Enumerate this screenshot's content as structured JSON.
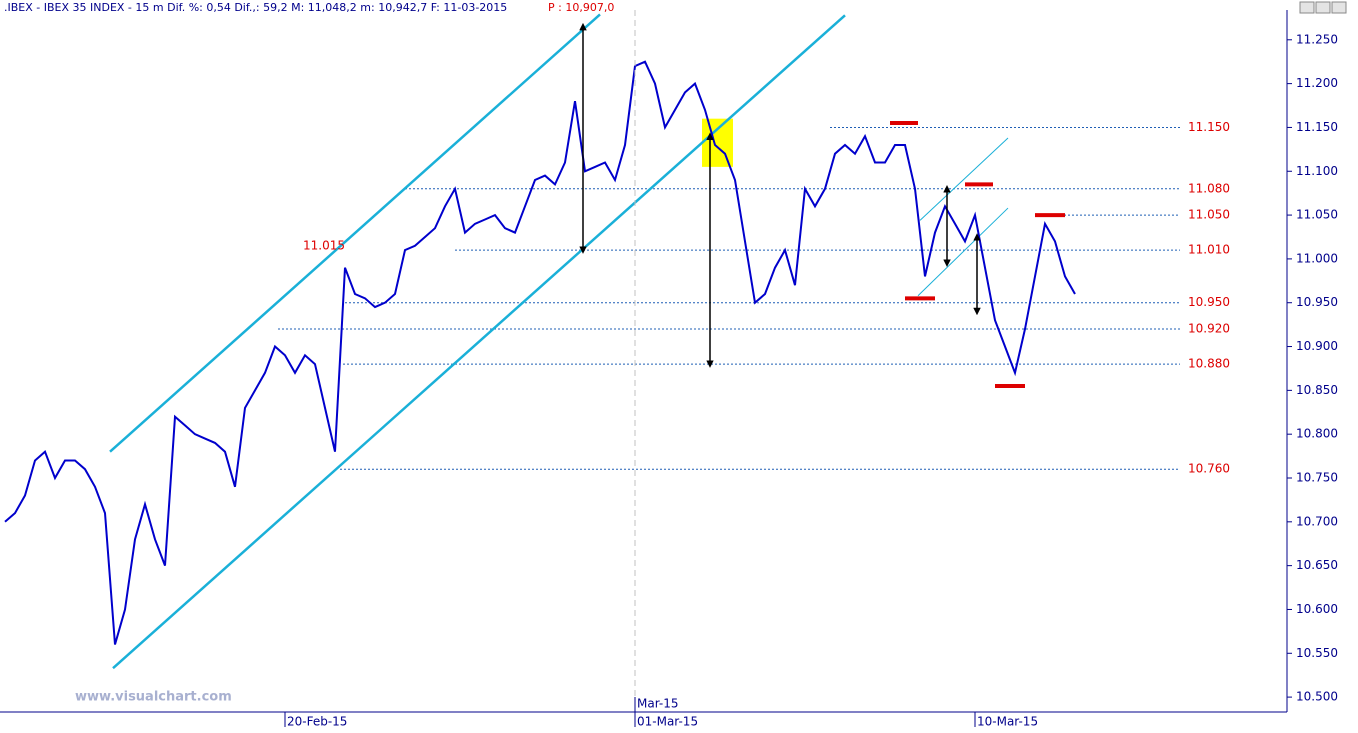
{
  "header": {
    "text": ".IBEX - IBEX 35 INDEX -  15 m Dif. %: 0,54 Dif.,: 59,2 M: 11,048,2 m: 10,942,7 F: 11-03-2015",
    "price": "P : 10,907,0"
  },
  "watermark": "www.visualchart.com",
  "chart_data": {
    "type": "line",
    "series": [
      {
        "name": ".IBEX",
        "color": "#0000cc",
        "values": [
          10700,
          10710,
          10730,
          10770,
          10780,
          10750,
          10770,
          10770,
          10760,
          10740,
          10710,
          10560,
          10600,
          10680,
          10720,
          10680,
          10650,
          10820,
          10810,
          10800,
          10795,
          10790,
          10780,
          10740,
          10830,
          10850,
          10870,
          10900,
          10890,
          10870,
          10890,
          10880,
          10830,
          10780,
          10990,
          10960,
          10955,
          10945,
          10950,
          10960,
          11010,
          11015,
          11025,
          11035,
          11060,
          11080,
          11030,
          11040,
          11045,
          11050,
          11035,
          11030,
          11060,
          11090,
          11095,
          11085,
          11110,
          11180,
          11100,
          11105,
          11110,
          11090,
          11130,
          11220,
          11225,
          11200,
          11150,
          11170,
          11190,
          11200,
          11170,
          11130,
          11120,
          11090,
          11020,
          10950,
          10960,
          10990,
          11010,
          10970,
          11080,
          11060,
          11080,
          11120,
          11130,
          11120,
          11140,
          11110,
          11110,
          11130,
          11130,
          11080,
          10980,
          11030,
          11060,
          11040,
          11020,
          11050,
          10990,
          10930,
          10900,
          10870,
          10920,
          10980,
          11040,
          11020,
          10980,
          10960
        ]
      }
    ],
    "xlim": [
      -0.5,
      128
    ],
    "ylim": [
      10483,
      11284
    ],
    "yticks": [
      {
        "value": 11250,
        "label": "11.250"
      },
      {
        "value": 11200,
        "label": "11.200"
      },
      {
        "value": 11150,
        "label": "11.150"
      },
      {
        "value": 11100,
        "label": "11.100"
      },
      {
        "value": 11050,
        "label": "11.050"
      },
      {
        "value": 11000,
        "label": "11.000"
      },
      {
        "value": 10950,
        "label": "10.950"
      },
      {
        "value": 10900,
        "label": "10.900"
      },
      {
        "value": 10850,
        "label": "10.850"
      },
      {
        "value": 10800,
        "label": "10.800"
      },
      {
        "value": 10750,
        "label": "10.750"
      },
      {
        "value": 10700,
        "label": "10.700"
      },
      {
        "value": 10650,
        "label": "10.650"
      },
      {
        "value": 10600,
        "label": "10.600"
      },
      {
        "value": 10550,
        "label": "10.550"
      },
      {
        "value": 10500,
        "label": "10.500"
      }
    ],
    "xticks": [
      {
        "value": 28,
        "label": "20-Feb-15"
      },
      {
        "value": 63,
        "label": "01-Mar-15"
      },
      {
        "value": 97,
        "label": "10-Mar-15"
      }
    ],
    "month_marker": {
      "value": 63,
      "label": "Mar-15"
    },
    "levels": [
      {
        "value": 11150,
        "label": "11.150",
        "from": 82.5
      },
      {
        "value": 11080,
        "label": "11.080",
        "from": 40
      },
      {
        "value": 11050,
        "label": "11.050",
        "from": 105.5
      },
      {
        "value": 11010,
        "label": "11.010",
        "from": 45
      },
      {
        "value": 10950,
        "label": "10.950",
        "from": 34
      },
      {
        "value": 10920,
        "label": "10.920",
        "from": 27.3
      },
      {
        "value": 10880,
        "label": "10.880",
        "from": 33.8
      },
      {
        "value": 10760,
        "label": "10.760",
        "from": 33.5
      }
    ],
    "point_label": {
      "value": 11015,
      "label": "11.015",
      "at": 34
    },
    "trendlines": [
      {
        "x": [
          10.5,
          59.5
        ],
        "y": [
          10780,
          11279
        ],
        "width": 2.5
      },
      {
        "x": [
          10.8,
          84
        ],
        "y": [
          10533,
          11278
        ],
        "width": 2.5
      },
      {
        "x": [
          91.5,
          100.3
        ],
        "y": [
          11044,
          11138
        ],
        "width": 1
      },
      {
        "x": [
          91.3,
          100.3
        ],
        "y": [
          10958,
          11058
        ],
        "width": 1
      }
    ],
    "channel_color": "#1ab0d8",
    "level_color": "#1f5fb5",
    "label_color": "#dd0000",
    "arrows": [
      {
        "x": 57.8,
        "values": [
          11265,
          11010
        ]
      },
      {
        "x": 70.5,
        "values": [
          11140,
          10880
        ]
      },
      {
        "x": 94.2,
        "values": [
          11080,
          10995
        ]
      },
      {
        "x": 97.2,
        "values": [
          11025,
          10940
        ]
      }
    ],
    "marks": [
      {
        "x": [
          88.5,
          91.3
        ],
        "value": 11155
      },
      {
        "x": [
          90,
          93
        ],
        "value": 10955
      },
      {
        "x": [
          96,
          98.8
        ],
        "value": 11085
      },
      {
        "x": [
          103,
          106
        ],
        "value": 11050
      },
      {
        "x": [
          99,
          102
        ],
        "value": 10855
      }
    ],
    "highlight": {
      "x": [
        69.7,
        72.8
      ],
      "y": [
        11105,
        11160
      ],
      "color": "#ffff00"
    }
  }
}
